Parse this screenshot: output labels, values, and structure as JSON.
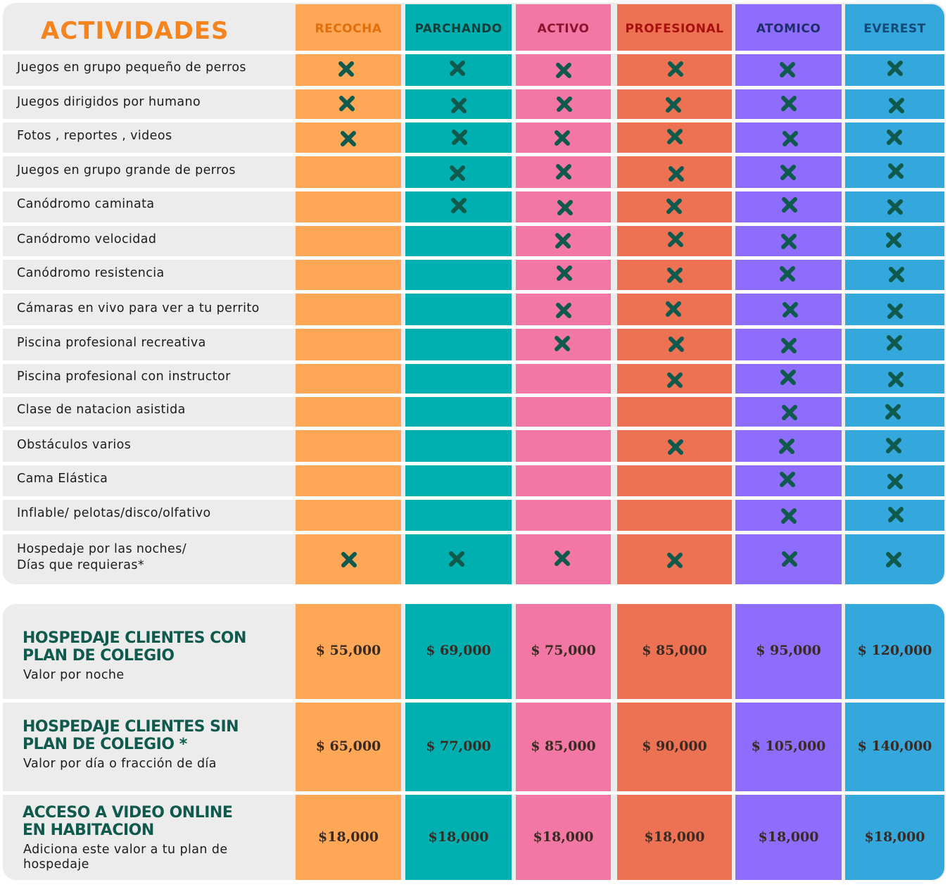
{
  "title": "ACTIVIDADES",
  "plans": [
    {
      "name": "RECOCHA",
      "color": "#fda757",
      "header_text_color": "#e06f0c"
    },
    {
      "name": "PARCHANDO",
      "color": "#00b0b0",
      "header_text_color": "#0d3f3a"
    },
    {
      "name": "ACTIVO",
      "color": "#f377a4",
      "header_text_color": "#8a1530"
    },
    {
      "name": "PROFESIONAL",
      "color": "#ec7253",
      "header_text_color": "#a8100e"
    },
    {
      "name": "ATOMICO",
      "color": "#8f6dfc",
      "header_text_color": "#1d2d6b"
    },
    {
      "name": "EVEREST",
      "color": "#34a7dc",
      "header_text_color": "#134a7a"
    }
  ],
  "check_icon": "x-mark-icon",
  "check_color": "#0f5a4d",
  "activities": [
    {
      "label": "Juegos en grupo pequeño de perros",
      "included": [
        true,
        true,
        true,
        true,
        true,
        true
      ]
    },
    {
      "label": "Juegos dirigidos por humano",
      "included": [
        true,
        true,
        true,
        true,
        true,
        true
      ]
    },
    {
      "label": "Fotos , reportes , videos",
      "included": [
        true,
        true,
        true,
        true,
        true,
        true
      ]
    },
    {
      "label": "Juegos en grupo grande de perros",
      "included": [
        false,
        true,
        true,
        true,
        true,
        true
      ]
    },
    {
      "label": "Canódromo caminata",
      "included": [
        false,
        true,
        true,
        true,
        true,
        true
      ]
    },
    {
      "label": "Canódromo velocidad",
      "included": [
        false,
        false,
        true,
        true,
        true,
        true
      ]
    },
    {
      "label": "Canódromo resistencia",
      "included": [
        false,
        false,
        true,
        true,
        true,
        true
      ]
    },
    {
      "label": "Cámaras en vivo para ver a tu perrito",
      "included": [
        false,
        false,
        true,
        true,
        true,
        true
      ]
    },
    {
      "label": "Piscina profesional recreativa",
      "included": [
        false,
        false,
        true,
        true,
        true,
        true
      ]
    },
    {
      "label": "Piscina profesional con instructor",
      "included": [
        false,
        false,
        false,
        true,
        true,
        true
      ]
    },
    {
      "label": "Clase de natacion asistida",
      "included": [
        false,
        false,
        false,
        false,
        true,
        true
      ]
    },
    {
      "label": "Obstáculos varios",
      "included": [
        false,
        false,
        false,
        true,
        true,
        true
      ]
    },
    {
      "label": "Cama Elástica",
      "included": [
        false,
        false,
        false,
        false,
        true,
        true
      ]
    },
    {
      "label": "Inflable/ pelotas/disco/olfativo",
      "included": [
        false,
        false,
        false,
        false,
        true,
        true
      ]
    },
    {
      "label": "Hospedaje por las noches/\nDías que requieras*",
      "included": [
        true,
        true,
        true,
        true,
        true,
        true
      ]
    }
  ],
  "pricing": [
    {
      "title": "HOSPEDAJE CLIENTES CON\nPLAN DE COLEGIO",
      "subtitle": "Valor por noche",
      "prices": [
        "$ 55,000",
        "$ 69,000",
        "$ 75,000",
        "$ 85,000",
        "$ 95,000",
        "$ 120,000"
      ]
    },
    {
      "title": "HOSPEDAJE CLIENTES SIN\nPLAN DE COLEGIO  *",
      "subtitle": "Valor por día o fracción de día",
      "prices": [
        "$ 65,000",
        "$ 77,000",
        "$ 85,000",
        "$ 90,000",
        "$ 105,000",
        "$ 140,000"
      ]
    },
    {
      "title": "ACCESO A VIDEO ONLINE\n EN HABITACION",
      "subtitle": "Adiciona este valor a tu plan de\nhospedaje",
      "prices": [
        "$18,000",
        "$18,000",
        "$18,000",
        "$18,000",
        "$18,000",
        "$18,000"
      ]
    }
  ]
}
